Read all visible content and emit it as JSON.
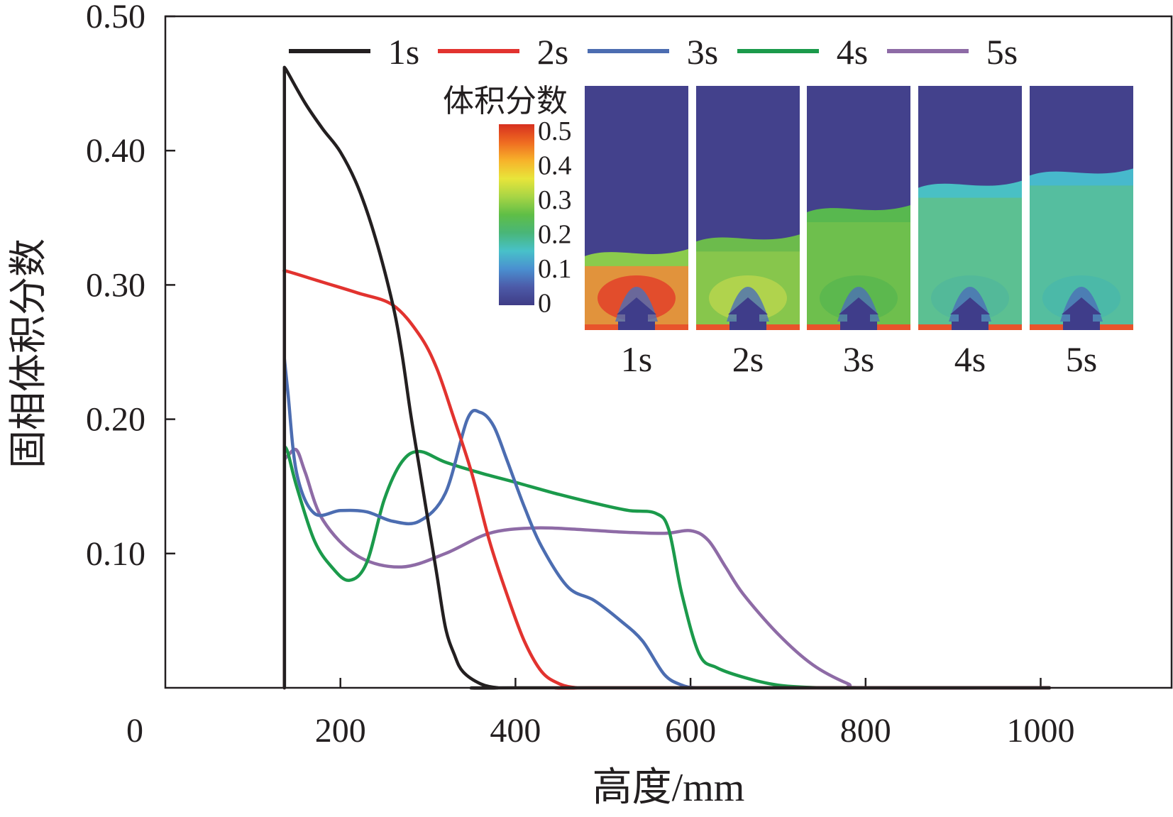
{
  "chart_data": {
    "type": "line",
    "title": "",
    "xlabel": "高度/mm",
    "ylabel": "固相体积分数",
    "origin_label": "0",
    "xlim": [
      0,
      1130
    ],
    "ylim": [
      0,
      0.5
    ],
    "xticks": [
      {
        "value": 200,
        "label": "200"
      },
      {
        "value": 400,
        "label": "400"
      },
      {
        "value": 600,
        "label": "600"
      },
      {
        "value": 800,
        "label": "800"
      },
      {
        "value": 1000,
        "label": "1000"
      }
    ],
    "yticks": [
      {
        "value": 0.1,
        "label": "0.10"
      },
      {
        "value": 0.2,
        "label": "0.20"
      },
      {
        "value": 0.3,
        "label": "0.30"
      },
      {
        "value": 0.4,
        "label": "0.40"
      },
      {
        "value": 0.5,
        "label": "0.50"
      }
    ],
    "grid": false,
    "legend_position": "top",
    "series": [
      {
        "name": "1s",
        "color": "#231f20",
        "x": [
          136,
          136,
          140,
          160,
          180,
          200,
          220,
          240,
          260,
          270,
          280,
          290,
          300,
          310,
          320,
          330,
          340,
          360,
          380,
          400,
          1010
        ],
        "y": [
          0,
          0.462,
          0.458,
          0.435,
          0.416,
          0.399,
          0.373,
          0.335,
          0.285,
          0.25,
          0.205,
          0.165,
          0.125,
          0.085,
          0.045,
          0.025,
          0.012,
          0.003,
          0,
          0,
          0
        ]
      },
      {
        "name": "2s",
        "color": "#e2332f",
        "x": [
          136,
          136,
          140,
          180,
          220,
          260,
          290,
          310,
          330,
          350,
          370,
          390,
          410,
          430,
          450,
          470,
          490,
          1010
        ],
        "y": [
          0,
          0.31,
          0.31,
          0.302,
          0.294,
          0.285,
          0.263,
          0.238,
          0.2,
          0.16,
          0.11,
          0.07,
          0.035,
          0.012,
          0.003,
          0,
          0,
          0
        ]
      },
      {
        "name": "3s",
        "color": "#4c6db1",
        "x": [
          136,
          136,
          140,
          150,
          170,
          200,
          230,
          260,
          290,
          320,
          345,
          360,
          375,
          390,
          410,
          430,
          460,
          490,
          520,
          545,
          570,
          590,
          605,
          620,
          1010
        ],
        "y": [
          0,
          0.245,
          0.22,
          0.16,
          0.13,
          0.132,
          0.131,
          0.124,
          0.124,
          0.145,
          0.2,
          0.205,
          0.195,
          0.17,
          0.135,
          0.105,
          0.075,
          0.065,
          0.05,
          0.035,
          0.01,
          0.002,
          0,
          0,
          0
        ]
      },
      {
        "name": "4s",
        "color": "#1b9a4b",
        "x": [
          136,
          136,
          140,
          150,
          170,
          190,
          210,
          230,
          250,
          270,
          290,
          320,
          360,
          400,
          450,
          500,
          530,
          560,
          575,
          590,
          610,
          630,
          660,
          700,
          750,
          800,
          1010
        ],
        "y": [
          0,
          0.18,
          0.175,
          0.15,
          0.11,
          0.09,
          0.08,
          0.093,
          0.14,
          0.168,
          0.176,
          0.168,
          0.16,
          0.153,
          0.144,
          0.136,
          0.132,
          0.13,
          0.118,
          0.07,
          0.025,
          0.015,
          0.008,
          0.002,
          0,
          0,
          0
        ]
      },
      {
        "name": "5s",
        "color": "#8e6ba6",
        "x": [
          136,
          136,
          140,
          150,
          160,
          180,
          220,
          270,
          320,
          370,
          420,
          470,
          520,
          570,
          600,
          620,
          640,
          660,
          700,
          740,
          780,
          800,
          1010
        ],
        "y": [
          0,
          0.17,
          0.173,
          0.177,
          0.16,
          0.125,
          0.098,
          0.09,
          0.1,
          0.115,
          0.119,
          0.118,
          0.116,
          0.115,
          0.117,
          0.11,
          0.09,
          0.07,
          0.04,
          0.017,
          0.003,
          0,
          0
        ]
      }
    ]
  },
  "inset": {
    "colorbar_title": "体积分数",
    "colorbar_ticks": [
      "0.5",
      "0.4",
      "0.3",
      "0.2",
      "0.1",
      "0"
    ],
    "colorbar_colors": [
      "#d7301f",
      "#ef6b21",
      "#f7b22a",
      "#e8e53a",
      "#a8d545",
      "#5fbe46",
      "#49b678",
      "#48c1c9",
      "#4a8fd0",
      "#4c5aa8",
      "#3f3c86"
    ],
    "panels": [
      {
        "label": "1s",
        "bed_height": 0.32,
        "bed_color": "#f08a3a",
        "core_color": "#e2462a",
        "top_color": "#8bcb4c"
      },
      {
        "label": "2s",
        "bed_height": 0.38,
        "bed_color": "#8cc84c",
        "core_color": "#b5d44e",
        "top_color": "#6cbb4c"
      },
      {
        "label": "3s",
        "bed_height": 0.5,
        "bed_color": "#72bf4c",
        "core_color": "#5ab74f",
        "top_color": "#58b84f"
      },
      {
        "label": "4s",
        "bed_height": 0.6,
        "bed_color": "#5fc08a",
        "core_color": "#52b89a",
        "top_color": "#49c0c4"
      },
      {
        "label": "5s",
        "bed_height": 0.65,
        "bed_color": "#58be96",
        "core_color": "#4ab8a8",
        "top_color": "#47b9cc"
      }
    ],
    "background_color": "#43418c",
    "inlet_color": "#3f3d8a"
  }
}
